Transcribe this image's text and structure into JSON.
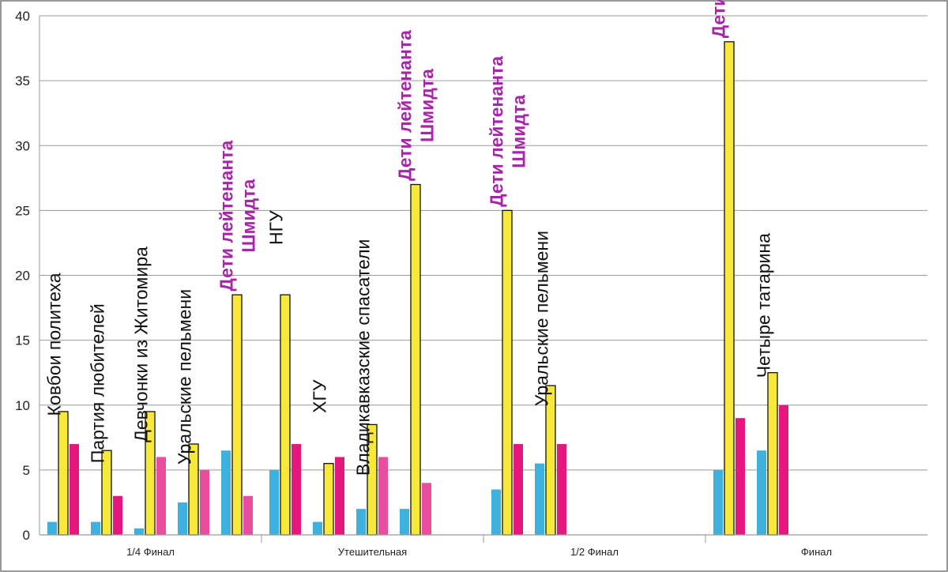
{
  "colors": {
    "blue": "#3fb1dd",
    "yellow": "#f7e83a",
    "red": "#e5177d",
    "pink": "#ea4d9d",
    "highlight": "#a626a8",
    "grid": "#9a9a9a",
    "frame": "#777777"
  },
  "chart_data": {
    "type": "bar",
    "title": "",
    "xlabel": "",
    "ylabel": "",
    "ylim": [
      0,
      40
    ],
    "yticks": [
      0,
      5,
      10,
      15,
      20,
      25,
      30,
      35,
      40
    ],
    "stages": [
      {
        "name": "1/4 Финал",
        "teams": [
          {
            "name": "Ковбои политеха",
            "highlight": false,
            "values": [
              1,
              9.5,
              7
            ],
            "third": "red"
          },
          {
            "name": "Партия любителей",
            "highlight": false,
            "values": [
              1,
              6.5,
              3
            ],
            "third": "red"
          },
          {
            "name": "Девчонки из Житомира",
            "highlight": false,
            "values": [
              0.5,
              9.5,
              6
            ],
            "third": "pink"
          },
          {
            "name": "Уральские пельмени",
            "highlight": false,
            "values": [
              2.5,
              7,
              5
            ],
            "third": "pink"
          },
          {
            "name": "Дети лейтенанта Шмидта",
            "highlight": true,
            "values": [
              6.5,
              18.5,
              3
            ],
            "third": "pink"
          }
        ]
      },
      {
        "name": "Утешительная",
        "teams": [
          {
            "name": "НГУ",
            "highlight": false,
            "values": [
              5,
              18.5,
              7
            ],
            "third": "red"
          },
          {
            "name": "ХГУ",
            "highlight": false,
            "values": [
              1,
              5.5,
              6
            ],
            "third": "red"
          },
          {
            "name": "Владикавказские спасатели",
            "highlight": false,
            "values": [
              2,
              8.5,
              6
            ],
            "third": "pink"
          },
          {
            "name": "Дети лейтенанта Шмидта",
            "highlight": true,
            "values": [
              2,
              27,
              4
            ],
            "third": "pink"
          }
        ]
      },
      {
        "name": "1/2 Финал",
        "teams": [
          {
            "name": "Дети лейтенанта Шмидта",
            "highlight": true,
            "values": [
              3.5,
              25,
              7
            ],
            "third": "red"
          },
          {
            "name": "Уральские пельмени",
            "highlight": false,
            "values": [
              5.5,
              11.5,
              7
            ],
            "third": "red"
          }
        ]
      },
      {
        "name": "Финал",
        "teams": [
          {
            "name": "Дети лейтенанта Шмидта",
            "highlight": true,
            "values": [
              5,
              38,
              9
            ],
            "third": "red"
          },
          {
            "name": "Четыре татарина",
            "highlight": false,
            "values": [
              6.5,
              12.5,
              10
            ],
            "third": "red"
          }
        ]
      }
    ]
  }
}
